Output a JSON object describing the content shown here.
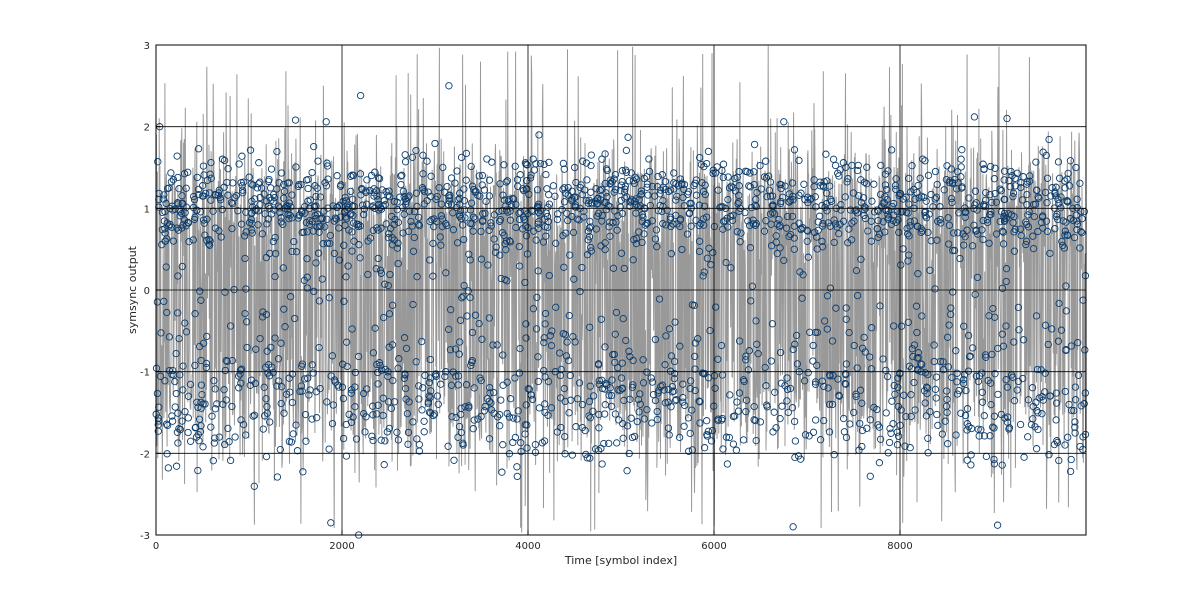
{
  "chart_data": {
    "type": "scatter",
    "title": "",
    "xlabel": "Time [symbol index]",
    "ylabel": "symsync output",
    "xlim": [
      0,
      10000
    ],
    "ylim": [
      -3,
      3
    ],
    "x_ticks": [
      0,
      2000,
      4000,
      6000,
      8000
    ],
    "y_ticks": [
      -3,
      -2,
      -1,
      0,
      1,
      2,
      3
    ],
    "grid": true,
    "legend": "none",
    "colors": {
      "trace": "#999999",
      "marker": "#0b3d6e",
      "grid": "#000000",
      "axes": "#000000"
    },
    "series": [
      {
        "kind": "line",
        "description_points": 9999,
        "x_range": [
          0,
          9999
        ],
        "value_bands": {
          "upper_center": 1.0,
          "lower_center": -1.3,
          "spread": 0.45,
          "peak_max": 3.0,
          "peak_min": -3.0
        }
      },
      {
        "kind": "markers",
        "marker": "open-circle",
        "x_range": [
          0,
          9999
        ],
        "value_bands": {
          "upper_center": 1.05,
          "lower_center": -1.35,
          "spread": 0.4,
          "max": 2.5,
          "min": -3.0
        }
      }
    ],
    "outlier_markers": [
      {
        "x": 40,
        "y": 2.0
      },
      {
        "x": 2200,
        "y": 2.38
      },
      {
        "x": 3150,
        "y": 2.5
      },
      {
        "x": 1500,
        "y": 2.08
      },
      {
        "x": 1830,
        "y": 2.06
      },
      {
        "x": 6750,
        "y": 2.06
      },
      {
        "x": 8800,
        "y": 2.12
      },
      {
        "x": 9150,
        "y": 2.1
      },
      {
        "x": 2180,
        "y": -3.0
      },
      {
        "x": 6850,
        "y": -2.9
      },
      {
        "x": 1880,
        "y": -2.85
      },
      {
        "x": 9050,
        "y": -2.88
      }
    ]
  }
}
